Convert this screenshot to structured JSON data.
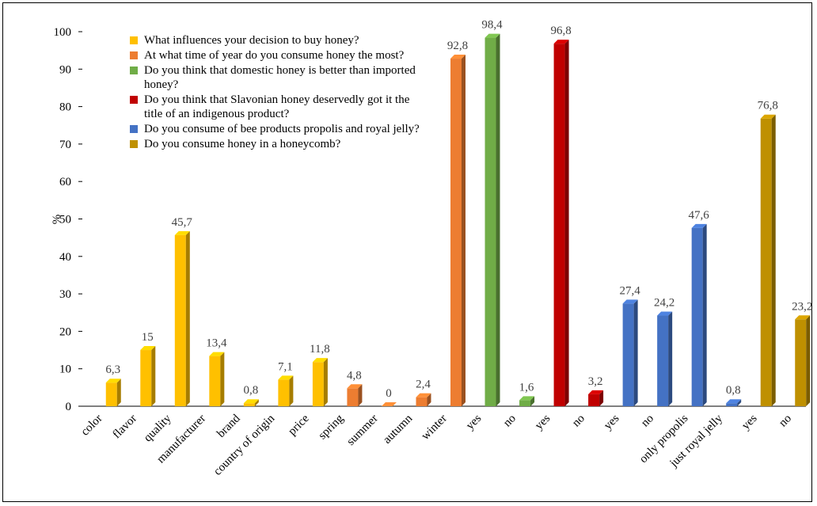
{
  "chart_data": {
    "type": "bar3d",
    "categories": [
      "color",
      "flavor",
      "quality",
      "manufacturer",
      "brand",
      "country of origin",
      "price",
      "spring",
      "summer",
      "autumn",
      "winter",
      "yes",
      "no",
      "yes",
      "no",
      "yes",
      "no",
      "only propolis",
      "just royal jelly",
      "yes",
      "no"
    ],
    "y_label": "%",
    "ylim": [
      0,
      100
    ],
    "yticks": [
      0,
      10,
      20,
      30,
      40,
      50,
      60,
      70,
      80,
      90,
      100
    ],
    "series": [
      {
        "name": "What influences your decision to buy honey?",
        "color": "#FFC000",
        "values": [
          6.3,
          15,
          45.7,
          13.4,
          0.8,
          7.1,
          11.8,
          null,
          null,
          null,
          null,
          null,
          null,
          null,
          null,
          null,
          null,
          null,
          null,
          null,
          null
        ],
        "value_labels": [
          "6,3",
          "15",
          "45,7",
          "13,4",
          "0,8",
          "7,1",
          "11,8",
          null,
          null,
          null,
          null,
          null,
          null,
          null,
          null,
          null,
          null,
          null,
          null,
          null,
          null
        ]
      },
      {
        "name": "At what time of year do you consume honey the most?",
        "color": "#ED7D31",
        "values": [
          null,
          null,
          null,
          null,
          null,
          null,
          null,
          4.8,
          0,
          2.4,
          92.8,
          null,
          null,
          null,
          null,
          null,
          null,
          null,
          null,
          null,
          null
        ],
        "value_labels": [
          null,
          null,
          null,
          null,
          null,
          null,
          null,
          "4,8",
          "0",
          "2,4",
          "92,8",
          null,
          null,
          null,
          null,
          null,
          null,
          null,
          null,
          null,
          null
        ]
      },
      {
        "name": "Do you think that domestic honey is better than imported honey?",
        "color": "#70AD47",
        "values": [
          null,
          null,
          null,
          null,
          null,
          null,
          null,
          null,
          null,
          null,
          null,
          98.4,
          1.6,
          null,
          null,
          null,
          null,
          null,
          null,
          null,
          null
        ],
        "value_labels": [
          null,
          null,
          null,
          null,
          null,
          null,
          null,
          null,
          null,
          null,
          null,
          "98,4",
          "1,6",
          null,
          null,
          null,
          null,
          null,
          null,
          null,
          null
        ]
      },
      {
        "name": "Do you think that Slavonian honey deservedly got it the title of an indigenous product?",
        "color": "#C00000",
        "values": [
          null,
          null,
          null,
          null,
          null,
          null,
          null,
          null,
          null,
          null,
          null,
          null,
          null,
          96.8,
          3.2,
          null,
          null,
          null,
          null,
          null,
          null
        ],
        "value_labels": [
          null,
          null,
          null,
          null,
          null,
          null,
          null,
          null,
          null,
          null,
          null,
          null,
          null,
          "96,8",
          "3,2",
          null,
          null,
          null,
          null,
          null,
          null
        ]
      },
      {
        "name": "Do you consume of bee products propolis and royal jelly?",
        "color": "#4472C4",
        "values": [
          null,
          null,
          null,
          null,
          null,
          null,
          null,
          null,
          null,
          null,
          null,
          null,
          null,
          null,
          null,
          27.4,
          24.2,
          47.6,
          0.8,
          null,
          null
        ],
        "value_labels": [
          null,
          null,
          null,
          null,
          null,
          null,
          null,
          null,
          null,
          null,
          null,
          null,
          null,
          null,
          null,
          "27,4",
          "24,2",
          "47,6",
          "0,8",
          null,
          null
        ]
      },
      {
        "name": "Do you consume honey in a honeycomb?",
        "color": "#BF9000",
        "values": [
          null,
          null,
          null,
          null,
          null,
          null,
          null,
          null,
          null,
          null,
          null,
          null,
          null,
          null,
          null,
          null,
          null,
          null,
          null,
          76.8,
          23.2
        ],
        "value_labels": [
          null,
          null,
          null,
          null,
          null,
          null,
          null,
          null,
          null,
          null,
          null,
          null,
          null,
          null,
          null,
          null,
          null,
          null,
          null,
          "76,8",
          "23,2"
        ]
      }
    ]
  }
}
